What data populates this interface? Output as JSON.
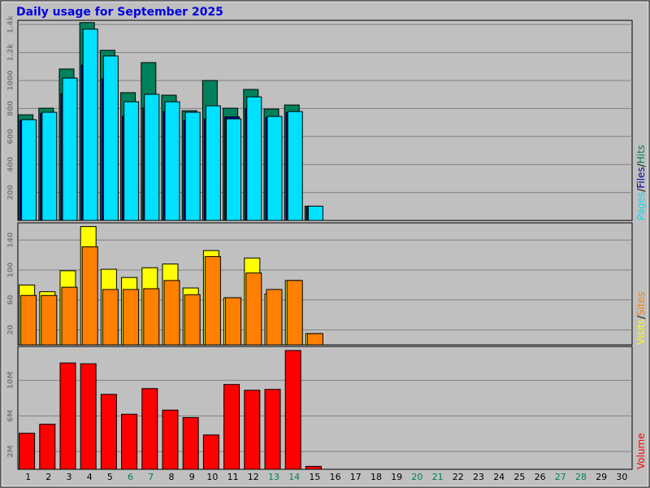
{
  "chart_data": [
    {
      "type": "bar",
      "title": "Daily usage for September 2025",
      "ylim": [
        0,
        1430
      ],
      "yticks": [
        200,
        400,
        600,
        800,
        1000,
        {
          "value": 1200,
          "label": "1.2k"
        },
        {
          "value": 1400,
          "label": "1.4k"
        }
      ],
      "legend_separator": "/",
      "series": [
        {
          "name": "Pages",
          "color": "#00e0ff",
          "values": [
            720,
            773,
            1017,
            1367,
            1175,
            848,
            901,
            848,
            773,
            819,
            726,
            883,
            743,
            778,
            102,
            null,
            null,
            null,
            null,
            null,
            null,
            null,
            null,
            null,
            null,
            null,
            null,
            null,
            null,
            null
          ]
        },
        {
          "name": "Files",
          "color": "#0000a0",
          "values": [
            715,
            765,
            906,
            1110,
            1011,
            745,
            805,
            780,
            715,
            725,
            740,
            800,
            735,
            770,
            100,
            null,
            null,
            null,
            null,
            null,
            null,
            null,
            null,
            null,
            null,
            null,
            null,
            null,
            null,
            null
          ]
        },
        {
          "name": "Hits",
          "color": "#00805c",
          "values": [
            755,
            802,
            1082,
            1414,
            1216,
            913,
            1128,
            895,
            784,
            1000,
            802,
            936,
            796,
            825,
            102,
            null,
            null,
            null,
            null,
            null,
            null,
            null,
            null,
            null,
            null,
            null,
            null,
            null,
            null,
            null
          ]
        }
      ]
    },
    {
      "type": "bar",
      "ylim": [
        0,
        163
      ],
      "yticks": [
        20,
        60,
        100,
        140
      ],
      "legend_separator": "/",
      "series": [
        {
          "name": "Visits",
          "color": "#ffff00",
          "values": [
            80,
            71,
            99,
            158,
            101,
            90,
            103,
            108,
            76,
            126,
            63,
            116,
            68,
            86,
            15,
            null,
            null,
            null,
            null,
            null,
            null,
            null,
            null,
            null,
            null,
            null,
            null,
            null,
            null,
            null
          ]
        },
        {
          "name": "Sites",
          "color": "#ff8000",
          "values": [
            66,
            66,
            77,
            131,
            74,
            74,
            75,
            86,
            67,
            118,
            63,
            96,
            74,
            86,
            15,
            null,
            null,
            null,
            null,
            null,
            null,
            null,
            null,
            null,
            null,
            null,
            null,
            null,
            null,
            null
          ]
        }
      ]
    },
    {
      "type": "bar",
      "ylim": [
        0,
        13800000
      ],
      "yticks": [
        {
          "value": 2000000,
          "label": "2M"
        },
        {
          "value": 6000000,
          "label": "6M"
        },
        {
          "value": 10000000,
          "label": "10M"
        }
      ],
      "categories": [
        "1",
        "2",
        "3",
        "4",
        "5",
        "6",
        "7",
        "8",
        "9",
        "10",
        "11",
        "12",
        "13",
        "14",
        "15",
        "16",
        "17",
        "18",
        "19",
        "20",
        "21",
        "22",
        "23",
        "24",
        "25",
        "26",
        "27",
        "28",
        "29",
        "30"
      ],
      "category_colors": [
        "#000000",
        "#000000",
        "#000000",
        "#000000",
        "#000000",
        "#00805c",
        "#00805c",
        "#000000",
        "#000000",
        "#000000",
        "#000000",
        "#000000",
        "#00805c",
        "#00805c",
        "#000000",
        "#000000",
        "#000000",
        "#000000",
        "#000000",
        "#00805c",
        "#00805c",
        "#000000",
        "#000000",
        "#000000",
        "#000000",
        "#000000",
        "#00805c",
        "#00805c",
        "#000000",
        "#000000"
      ],
      "series": [
        {
          "name": "Volume",
          "color": "#ff0000",
          "values": [
            4050000,
            5070000,
            11950000,
            11860000,
            8420000,
            6190000,
            9070000,
            6650000,
            5810000,
            3860000,
            9530000,
            8880000,
            8980000,
            13350000,
            330000,
            null,
            null,
            null,
            null,
            null,
            null,
            null,
            null,
            null,
            null,
            null,
            null,
            null,
            null,
            null
          ]
        }
      ]
    }
  ]
}
